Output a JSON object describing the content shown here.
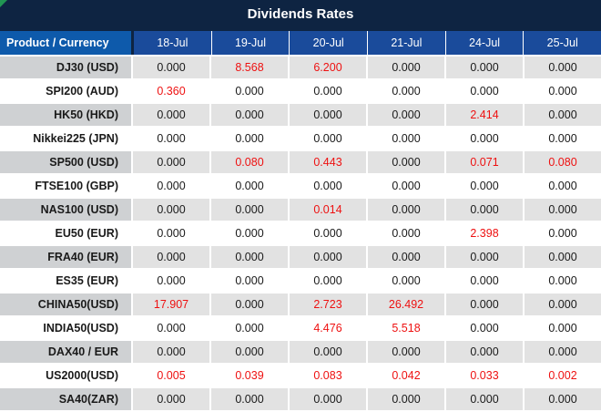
{
  "title": "Dividends Rates",
  "colors": {
    "title_bar_bg": "#0E2442",
    "product_header_bg": "#0E5AAB",
    "date_header_bg": "#1A4B9B",
    "striped_product_bg": "#CFD1D3",
    "striped_value_bg": "#E2E2E2",
    "nonzero_value": "#EE1111",
    "zero_value": "#1A1A1A",
    "corner_marker": "#219653"
  },
  "chart_data": {
    "type": "table",
    "title": "Dividends Rates",
    "product_header": "Product / Currency",
    "columns": [
      "18-Jul",
      "19-Jul",
      "20-Jul",
      "21-Jul",
      "24-Jul",
      "25-Jul"
    ],
    "value_format": "3-decimals",
    "nonzero_values_shown_in_red": true,
    "rows": [
      {
        "product": "DJ30 (USD)",
        "values": [
          0,
          8.568,
          6.2,
          0,
          0,
          0
        ]
      },
      {
        "product": "SPI200 (AUD)",
        "values": [
          0.36,
          0,
          0,
          0,
          0,
          0
        ]
      },
      {
        "product": "HK50 (HKD)",
        "values": [
          0,
          0,
          0,
          0,
          2.414,
          0
        ]
      },
      {
        "product": "Nikkei225 (JPN)",
        "values": [
          0,
          0,
          0,
          0,
          0,
          0
        ]
      },
      {
        "product": "SP500 (USD)",
        "values": [
          0,
          0.08,
          0.443,
          0,
          0.071,
          0.08
        ]
      },
      {
        "product": "FTSE100 (GBP)",
        "values": [
          0,
          0,
          0,
          0,
          0,
          0
        ]
      },
      {
        "product": "NAS100 (USD)",
        "values": [
          0,
          0,
          0.014,
          0,
          0,
          0
        ]
      },
      {
        "product": "EU50 (EUR)",
        "values": [
          0,
          0,
          0,
          0,
          2.398,
          0
        ]
      },
      {
        "product": "FRA40 (EUR)",
        "values": [
          0,
          0,
          0,
          0,
          0,
          0
        ]
      },
      {
        "product": "ES35 (EUR)",
        "values": [
          0,
          0,
          0,
          0,
          0,
          0
        ]
      },
      {
        "product": "CHINA50(USD)",
        "values": [
          17.907,
          0,
          2.723,
          26.492,
          0,
          0
        ]
      },
      {
        "product": "INDIA50(USD)",
        "values": [
          0,
          0,
          4.476,
          5.518,
          0,
          0
        ]
      },
      {
        "product": "DAX40 / EUR",
        "values": [
          0,
          0,
          0,
          0,
          0,
          0
        ]
      },
      {
        "product": "US2000(USD)",
        "values": [
          0.005,
          0.039,
          0.083,
          0.042,
          0.033,
          0.002
        ]
      },
      {
        "product": "SA40(ZAR)",
        "values": [
          0,
          0,
          0,
          0,
          0,
          0
        ]
      }
    ]
  }
}
